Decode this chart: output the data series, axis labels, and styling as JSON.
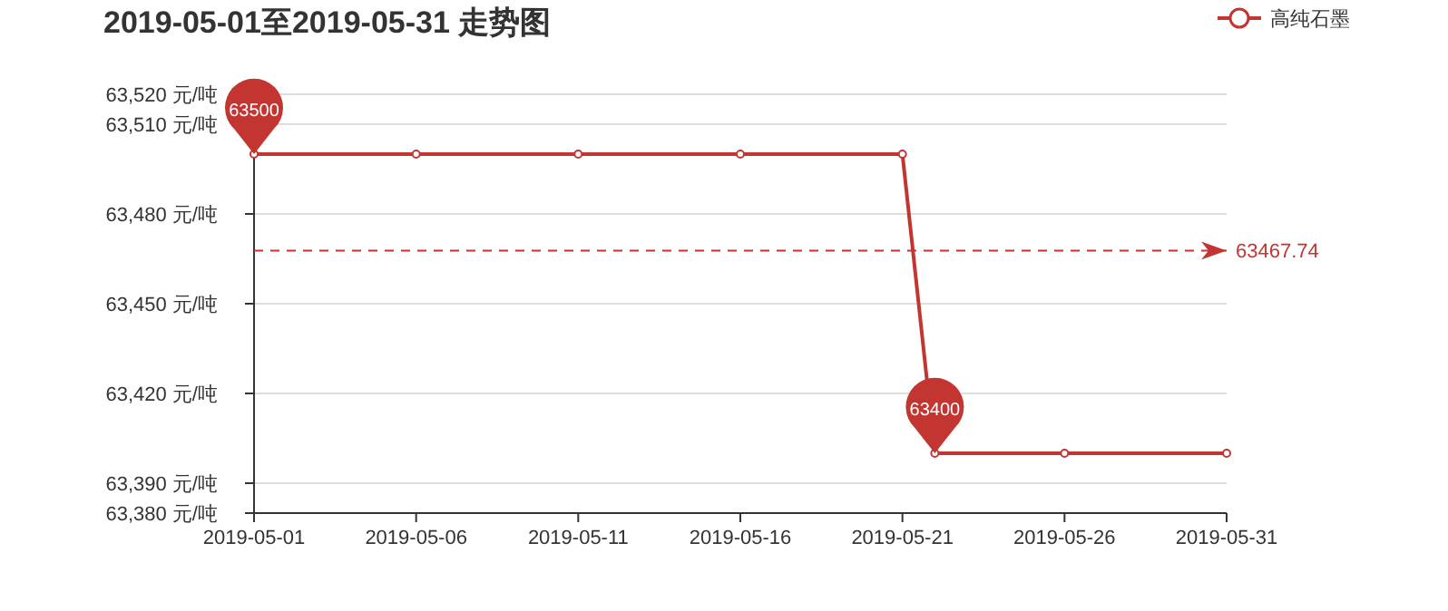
{
  "chart_data": {
    "type": "line",
    "title": "2019-05-01至2019-05-31 走势图",
    "x": [
      "2019-05-01",
      "2019-05-06",
      "2019-05-11",
      "2019-05-16",
      "2019-05-21",
      "2019-05-22",
      "2019-05-26",
      "2019-05-31"
    ],
    "series": [
      {
        "name": "高纯石墨",
        "color": "#c23531",
        "values": [
          63500,
          63500,
          63500,
          63500,
          63500,
          63400,
          63400,
          63400
        ]
      }
    ],
    "xlim": [
      "2019-05-01",
      "2019-05-31"
    ],
    "xticks": [
      "2019-05-01",
      "2019-05-06",
      "2019-05-11",
      "2019-05-16",
      "2019-05-21",
      "2019-05-26",
      "2019-05-31"
    ],
    "ylim": [
      63380,
      63520
    ],
    "yticks": [
      {
        "value": 63380,
        "label": "63,380 元/吨"
      },
      {
        "value": 63390,
        "label": "63,390 元/吨"
      },
      {
        "value": 63420,
        "label": "63,420 元/吨"
      },
      {
        "value": 63450,
        "label": "63,450 元/吨"
      },
      {
        "value": 63480,
        "label": "63,480 元/吨"
      },
      {
        "value": 63510,
        "label": "63,510 元/吨"
      },
      {
        "value": 63520,
        "label": "63,520 元/吨"
      }
    ],
    "ref_lines": [
      {
        "axis": "y",
        "value": 63467.74,
        "label": "63467.74",
        "color": "#c23531",
        "line_style": "dashed"
      }
    ],
    "annotations": [
      {
        "text": "63500",
        "x": "2019-05-01",
        "y": 63500
      },
      {
        "text": "63400",
        "x": "2019-05-22",
        "y": 63400
      }
    ],
    "grid": "y",
    "legend": "top right",
    "marker": "circle",
    "line_style": "solid"
  }
}
